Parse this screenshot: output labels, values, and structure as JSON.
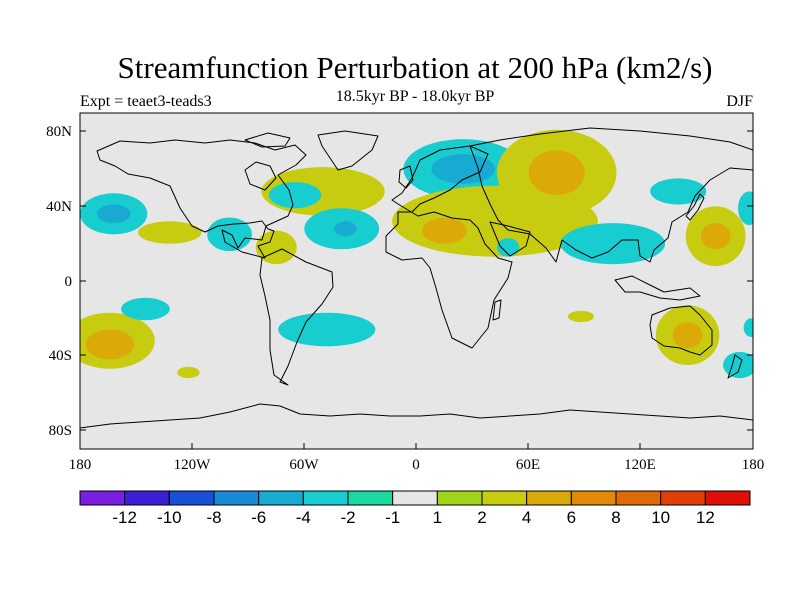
{
  "map": {
    "title": "Streamfunction Perturbation at 200 hPa (km2/s)",
    "left_label": "Expt = teaet3-teads3",
    "center_label": "18.5kyr BP - 18.0kyr BP",
    "right_label": "DJF",
    "background_color": "#e6e6e6",
    "lat_ticks": [
      "80N",
      "40N",
      "0",
      "40S",
      "80S"
    ],
    "lon_ticks": [
      "180",
      "120W",
      "60W",
      "0",
      "60E",
      "120E",
      "180"
    ]
  },
  "colorbar": {
    "colors": [
      "#7a1fe0",
      "#3a1fd8",
      "#1a4fd8",
      "#1a8ad8",
      "#18aad0",
      "#18cdd0",
      "#1ad8a0",
      "#e6e6e6",
      "#a0d418",
      "#c8cc10",
      "#dcaa08",
      "#e08a08",
      "#e06a08",
      "#e04008",
      "#e01008"
    ],
    "labels": [
      "-12",
      "-10",
      "-8",
      "-6",
      "-4",
      "-2",
      "-1",
      "1",
      "2",
      "4",
      "6",
      "8",
      "10",
      "12"
    ]
  },
  "anomalies": [
    {
      "lon": -162,
      "lat": 36,
      "rx": 18,
      "ry": 11,
      "level": "-2"
    },
    {
      "lon": -162,
      "lat": 36,
      "rx": 9,
      "ry": 5,
      "level": "-4"
    },
    {
      "lon": -132,
      "lat": 26,
      "rx": 17,
      "ry": 6,
      "level": "2"
    },
    {
      "lon": -164,
      "lat": -32,
      "rx": 24,
      "ry": 15,
      "level": "2"
    },
    {
      "lon": -164,
      "lat": -34,
      "rx": 13,
      "ry": 8,
      "level": "4"
    },
    {
      "lon": -145,
      "lat": -15,
      "rx": 13,
      "ry": 6,
      "level": "-2"
    },
    {
      "lon": -122,
      "lat": -49,
      "rx": 6,
      "ry": 3,
      "level": "2"
    },
    {
      "lon": -100,
      "lat": 25,
      "rx": 12,
      "ry": 9,
      "level": "-2"
    },
    {
      "lon": -75,
      "lat": 18,
      "rx": 11,
      "ry": 9,
      "level": "2"
    },
    {
      "lon": -50,
      "lat": 48,
      "rx": 33,
      "ry": 13,
      "level": "2"
    },
    {
      "lon": -65,
      "lat": 46,
      "rx": 14,
      "ry": 7,
      "level": "-2"
    },
    {
      "lon": -40,
      "lat": 28,
      "rx": 20,
      "ry": 11,
      "level": "-2"
    },
    {
      "lon": -38,
      "lat": 28,
      "rx": 6,
      "ry": 4,
      "level": "-4"
    },
    {
      "lon": -48,
      "lat": -26,
      "rx": 26,
      "ry": 9,
      "level": "-2"
    },
    {
      "lon": 25,
      "lat": 60,
      "rx": 32,
      "ry": 16,
      "level": "-2"
    },
    {
      "lon": 25,
      "lat": 60,
      "rx": 17,
      "ry": 8,
      "level": "-4"
    },
    {
      "lon": 42,
      "lat": 32,
      "rx": 55,
      "ry": 19,
      "level": "2"
    },
    {
      "lon": 15,
      "lat": 27,
      "rx": 12,
      "ry": 7,
      "level": "4"
    },
    {
      "lon": 75,
      "lat": 58,
      "rx": 32,
      "ry": 23,
      "level": "2"
    },
    {
      "lon": 75,
      "lat": 58,
      "rx": 15,
      "ry": 12,
      "level": "4"
    },
    {
      "lon": 49,
      "lat": 18,
      "rx": 6,
      "ry": 5,
      "level": "-2"
    },
    {
      "lon": 105,
      "lat": 20,
      "rx": 28,
      "ry": 11,
      "level": "-2"
    },
    {
      "lon": 140,
      "lat": 48,
      "rx": 15,
      "ry": 7,
      "level": "-2"
    },
    {
      "lon": 160,
      "lat": 24,
      "rx": 16,
      "ry": 16,
      "level": "2"
    },
    {
      "lon": 160,
      "lat": 24,
      "rx": 8,
      "ry": 7,
      "level": "4"
    },
    {
      "lon": 178,
      "lat": 39,
      "rx": 6,
      "ry": 9,
      "level": "-2"
    },
    {
      "lon": 145,
      "lat": -29,
      "rx": 17,
      "ry": 16,
      "level": "2"
    },
    {
      "lon": 145,
      "lat": -29,
      "rx": 8,
      "ry": 7,
      "level": "4"
    },
    {
      "lon": 88,
      "lat": -19,
      "rx": 7,
      "ry": 3,
      "level": "2"
    },
    {
      "lon": 173,
      "lat": -45,
      "rx": 9,
      "ry": 7,
      "level": "-2"
    },
    {
      "lon": 179,
      "lat": -25,
      "rx": 4,
      "ry": 5,
      "level": "-2"
    }
  ]
}
